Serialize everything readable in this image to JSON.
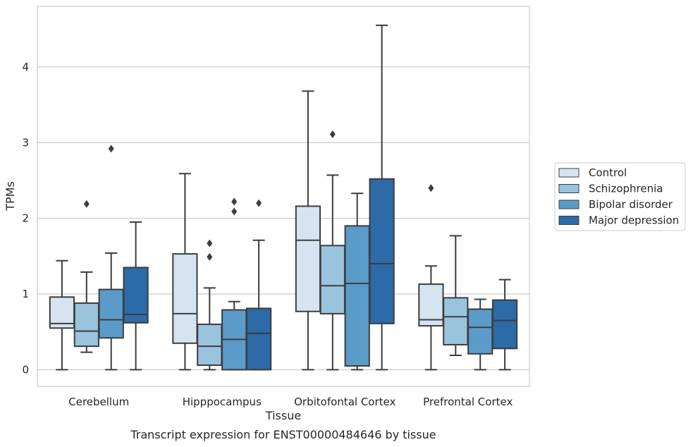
{
  "chart_data": {
    "type": "boxplot",
    "xlabel": "Tissue",
    "ylabel": "TPMs",
    "caption": "Transcript expression for ENST00000484646 by tissue",
    "ylim": [
      -0.22,
      4.8
    ],
    "yticks": [
      0,
      1,
      2,
      3,
      4
    ],
    "grid": "horizontal",
    "legend_position": "right",
    "categories": [
      "Cerebellum",
      "Hipppocampus",
      "Orbitofontal Cortex",
      "Prefrontal Cortex"
    ],
    "series": [
      {
        "name": "Control",
        "color": "#d6e4f2",
        "boxes": [
          {
            "whislo": 0.0,
            "q1": 0.55,
            "med": 0.61,
            "q3": 0.96,
            "whishi": 1.44,
            "fliers": []
          },
          {
            "whislo": 0.0,
            "q1": 0.35,
            "med": 0.74,
            "q3": 1.53,
            "whishi": 2.59,
            "fliers": []
          },
          {
            "whislo": 0.0,
            "q1": 0.77,
            "med": 1.71,
            "q3": 2.16,
            "whishi": 3.68,
            "fliers": []
          },
          {
            "whislo": 0.0,
            "q1": 0.58,
            "med": 0.66,
            "q3": 1.13,
            "whishi": 1.37,
            "fliers": [
              2.4
            ]
          }
        ]
      },
      {
        "name": "Schizophrenia",
        "color": "#9ac3de",
        "boxes": [
          {
            "whislo": 0.23,
            "q1": 0.31,
            "med": 0.51,
            "q3": 0.88,
            "whishi": 1.29,
            "fliers": [
              2.19
            ]
          },
          {
            "whislo": 0.0,
            "q1": 0.06,
            "med": 0.31,
            "q3": 0.6,
            "whishi": 1.08,
            "fliers": [
              1.49,
              1.67
            ]
          },
          {
            "whislo": 0.0,
            "q1": 0.74,
            "med": 1.11,
            "q3": 1.64,
            "whishi": 2.57,
            "fliers": [
              3.11
            ]
          },
          {
            "whislo": 0.19,
            "q1": 0.33,
            "med": 0.7,
            "q3": 0.95,
            "whishi": 1.77,
            "fliers": []
          }
        ]
      },
      {
        "name": "Bipolar disorder",
        "color": "#5b9bc9",
        "boxes": [
          {
            "whislo": 0.0,
            "q1": 0.42,
            "med": 0.66,
            "q3": 1.06,
            "whishi": 1.54,
            "fliers": [
              2.92
            ]
          },
          {
            "whislo": 0.0,
            "q1": 0.0,
            "med": 0.4,
            "q3": 0.79,
            "whishi": 0.9,
            "fliers": [
              2.09,
              2.22
            ]
          },
          {
            "whislo": 0.0,
            "q1": 0.05,
            "med": 1.14,
            "q3": 1.9,
            "whishi": 2.33,
            "fliers": []
          },
          {
            "whislo": 0.0,
            "q1": 0.21,
            "med": 0.56,
            "q3": 0.8,
            "whishi": 0.93,
            "fliers": []
          }
        ]
      },
      {
        "name": "Major depression",
        "color": "#2c6aa8",
        "boxes": [
          {
            "whislo": 0.0,
            "q1": 0.62,
            "med": 0.73,
            "q3": 1.35,
            "whishi": 1.95,
            "fliers": []
          },
          {
            "whislo": 0.0,
            "q1": 0.0,
            "med": 0.48,
            "q3": 0.81,
            "whishi": 1.71,
            "fliers": [
              2.2
            ]
          },
          {
            "whislo": 0.0,
            "q1": 0.61,
            "med": 1.4,
            "q3": 2.52,
            "whishi": 4.55,
            "fliers": []
          },
          {
            "whislo": 0.0,
            "q1": 0.28,
            "med": 0.65,
            "q3": 0.92,
            "whishi": 1.19,
            "fliers": []
          }
        ]
      }
    ]
  }
}
